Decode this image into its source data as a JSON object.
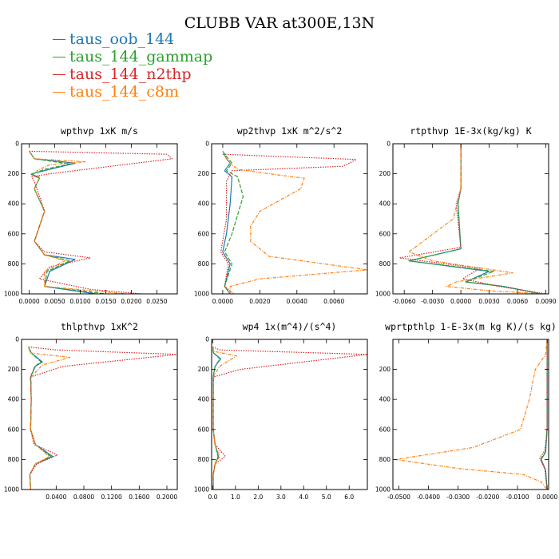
{
  "figure": {
    "title": "CLUBB VAR at300E,13N"
  },
  "legend": [
    {
      "label": "taus_oob_144",
      "color": "#1f77b4",
      "dash": "solid"
    },
    {
      "label": "taus_144_gammap",
      "color": "#2ca02c",
      "dash": "longdash"
    },
    {
      "label": "taus_144_n2thp",
      "color": "#d62728",
      "dash": "dot"
    },
    {
      "label": "taus_144_c8m",
      "color": "#ff7f0e",
      "dash": "dashdot"
    }
  ],
  "chart_data": [
    {
      "type": "line",
      "title": "wpthvp  1xK m/s",
      "xlim": [
        -0.0015,
        0.029
      ],
      "ylim": [
        1000,
        0
      ],
      "xticks": [
        0,
        0.005,
        0.01,
        0.015,
        0.02,
        0.025
      ],
      "xtick_labels": [
        "0.0000",
        "0.0050",
        "0.0100",
        "0.0150",
        "0.0200",
        "0.0250"
      ],
      "yticks": [
        0,
        200,
        400,
        600,
        800,
        1000
      ],
      "ytick_labels": [
        "0",
        "200",
        "400",
        "600",
        "800",
        "1000"
      ],
      "series": [
        {
          "name": "taus_oob_144",
          "x": [
            0,
            0.001,
            0.009,
            0.004,
            0.0005,
            0.002,
            0.001,
            0.003,
            0.001,
            0.003,
            0.009,
            0.004,
            0.003,
            0.013
          ],
          "y": [
            50,
            100,
            130,
            170,
            200,
            230,
            300,
            450,
            650,
            740,
            770,
            850,
            950,
            1000
          ]
        },
        {
          "name": "taus_144_gammap",
          "x": [
            0,
            0.001,
            0.008,
            0.003,
            0.0004,
            0.002,
            0.001,
            0.003,
            0.001,
            0.003,
            0.008,
            0.0035,
            0.003,
            0.015
          ],
          "y": [
            50,
            100,
            135,
            170,
            205,
            230,
            300,
            450,
            650,
            740,
            780,
            850,
            950,
            1000
          ]
        },
        {
          "name": "taus_144_n2thp",
          "x": [
            0,
            0.027,
            0.028,
            0.004,
            0.0005,
            0.001,
            0.003,
            0.001,
            0.003,
            0.012,
            0.004,
            0.002,
            0.012,
            0.022
          ],
          "y": [
            50,
            70,
            100,
            200,
            220,
            250,
            450,
            650,
            720,
            760,
            820,
            900,
            970,
            1000
          ]
        },
        {
          "name": "taus_144_c8m",
          "x": [
            0,
            0.001,
            0.011,
            0.004,
            0.0015,
            0.002,
            0.001,
            0.003,
            0.001,
            0.003,
            0.007,
            0.003,
            0.003,
            0.019
          ],
          "y": [
            50,
            100,
            120,
            140,
            180,
            230,
            300,
            450,
            650,
            740,
            780,
            850,
            950,
            1000
          ]
        }
      ]
    },
    {
      "type": "line",
      "title": "wp2thvp  1xK m^2/s^2",
      "xlim": [
        -0.0006,
        0.0078
      ],
      "ylim": [
        1000,
        0
      ],
      "xticks": [
        0,
        0.002,
        0.004,
        0.006
      ],
      "xtick_labels": [
        "0.0000",
        "0.0020",
        "0.0040",
        "0.0060"
      ],
      "yticks": [
        0,
        200,
        400,
        600,
        800,
        1000
      ],
      "ytick_labels": [
        "0",
        "200",
        "400",
        "600",
        "800",
        "1000"
      ],
      "series": [
        {
          "name": "taus_oob_144",
          "x": [
            0,
            0.0002,
            0.0004,
            0.0001,
            0.0005,
            0.0004,
            0.0002,
            0,
            0.0004,
            0.0001,
            0.0004
          ],
          "y": [
            50,
            100,
            130,
            180,
            220,
            400,
            600,
            720,
            800,
            950,
            1000
          ]
        },
        {
          "name": "taus_144_gammap",
          "x": [
            0,
            0.0003,
            0.0005,
            0.0002,
            0.0008,
            0.0011,
            0.0005,
            0.0001,
            0.0005,
            0.0001,
            0.0004
          ],
          "y": [
            50,
            100,
            130,
            180,
            220,
            350,
            600,
            720,
            800,
            950,
            1000
          ]
        },
        {
          "name": "taus_144_n2thp",
          "x": [
            0,
            0.0072,
            0.0065,
            0.0005,
            0.0002,
            0.0002,
            -0.0001,
            0.0003,
            0.0001,
            0.0006
          ],
          "y": [
            70,
            105,
            150,
            180,
            250,
            500,
            720,
            800,
            950,
            1000
          ]
        },
        {
          "name": "taus_144_c8m",
          "x": [
            0,
            0.0002,
            0.0004,
            0.0008,
            0.0025,
            0.0044,
            0.0042,
            0.002,
            0.0015,
            0.0015,
            0.0025,
            0.0078,
            0.002,
            0.0004,
            0.0004
          ],
          "y": [
            50,
            100,
            130,
            170,
            200,
            230,
            300,
            450,
            550,
            650,
            750,
            840,
            900,
            950,
            1000
          ]
        }
      ]
    },
    {
      "type": "line",
      "title": "rtpthvp  1E-3x(kg/kg) K",
      "xlim": [
        -0.0072,
        0.0093
      ],
      "ylim": [
        1000,
        0
      ],
      "xticks": [
        -0.006,
        -0.003,
        0,
        0.003,
        0.006,
        0.009
      ],
      "xtick_labels": [
        "-0.0060",
        "-0.0030",
        "0.0000",
        "0.0030",
        "0.0060",
        "0.0090"
      ],
      "yticks": [
        0,
        200,
        400,
        600,
        800,
        1000
      ],
      "ytick_labels": [
        "0",
        "200",
        "400",
        "600",
        "800",
        "1000"
      ],
      "series": [
        {
          "name": "taus_oob_144",
          "x": [
            0,
            0,
            -0.0003,
            0,
            -0.0055,
            0.003,
            0.0005,
            0.0045,
            0.0085
          ],
          "y": [
            0,
            300,
            400,
            700,
            780,
            850,
            920,
            950,
            1000
          ]
        },
        {
          "name": "taus_144_gammap",
          "x": [
            0,
            0,
            -0.0003,
            0,
            -0.0055,
            0.0035,
            0.0005,
            0.0045,
            0.0085
          ],
          "y": [
            0,
            300,
            400,
            700,
            780,
            850,
            920,
            950,
            1000
          ]
        },
        {
          "name": "taus_144_n2thp",
          "x": [
            0,
            0,
            -0.0005,
            0,
            -0.0065,
            0.002,
            0.0002,
            0.004,
            0.009
          ],
          "y": [
            0,
            300,
            400,
            690,
            760,
            830,
            900,
            950,
            1000
          ]
        },
        {
          "name": "taus_144_c8m",
          "x": [
            0,
            0,
            -0.0008,
            -0.0055,
            -0.003,
            0.0055,
            -0.0005,
            -0.0015,
            0.003,
            0.009
          ],
          "y": [
            0,
            300,
            500,
            720,
            780,
            860,
            920,
            950,
            980,
            1000
          ]
        }
      ]
    },
    {
      "type": "line",
      "title": "thlpthvp  1xK^2",
      "xlim": [
        -0.01,
        0.215
      ],
      "ylim": [
        1000,
        0
      ],
      "xticks": [
        0.04,
        0.08,
        0.12,
        0.16,
        0.2
      ],
      "xtick_labels": [
        "0.0400",
        "0.0800",
        "0.1200",
        "0.1600",
        "0.2000"
      ],
      "yticks": [
        0,
        200,
        400,
        600,
        800,
        1000
      ],
      "ytick_labels": [
        "0",
        "200",
        "400",
        "600",
        "800",
        "1000"
      ],
      "series": [
        {
          "name": "taus_oob_144",
          "x": [
            0,
            0.004,
            0.02,
            0.01,
            0.003,
            0.004,
            0.003,
            0.01,
            0.035,
            0.01,
            0.002,
            0.003
          ],
          "y": [
            50,
            90,
            150,
            180,
            250,
            400,
            600,
            700,
            780,
            830,
            900,
            1000
          ]
        },
        {
          "name": "taus_144_gammap",
          "x": [
            0,
            0.004,
            0.018,
            0.009,
            0.003,
            0.004,
            0.003,
            0.01,
            0.032,
            0.01,
            0.002,
            0.003
          ],
          "y": [
            50,
            90,
            150,
            180,
            250,
            400,
            600,
            700,
            780,
            830,
            900,
            1000
          ]
        },
        {
          "name": "taus_144_n2thp",
          "x": [
            0,
            0.04,
            0.215,
            0.05,
            0.003,
            0.004,
            0.003,
            0.008,
            0.042,
            0.012,
            0.002,
            0.003
          ],
          "y": [
            50,
            70,
            100,
            180,
            250,
            400,
            600,
            700,
            770,
            830,
            900,
            1000
          ]
        },
        {
          "name": "taus_144_c8m",
          "x": [
            0,
            0.002,
            0.06,
            0.02,
            0.004,
            0.004,
            0.003,
            0.01,
            0.03,
            0.01,
            0.002,
            0.003
          ],
          "y": [
            50,
            90,
            120,
            170,
            250,
            400,
            600,
            700,
            780,
            830,
            900,
            1000
          ]
        }
      ]
    },
    {
      "type": "line",
      "title": "wp4  1x(m^4)/(s^4)",
      "xlim": [
        -0.05,
        6.8
      ],
      "ylim": [
        1000,
        0
      ],
      "xticks": [
        0,
        1,
        2,
        3,
        4,
        5,
        6
      ],
      "xtick_labels": [
        "0.0",
        "1.0",
        "2.0",
        "3.0",
        "4.0",
        "5.0",
        "6.0"
      ],
      "yticks": [
        0,
        200,
        400,
        600,
        800,
        1000
      ],
      "ytick_labels": [
        "0",
        "200",
        "400",
        "600",
        "800",
        "1000"
      ],
      "series": [
        {
          "name": "taus_oob_144",
          "x": [
            0,
            0.03,
            0.35,
            0.1,
            0.02,
            0.02,
            0.02,
            0.1,
            0.25,
            0.1,
            0.02,
            0.02
          ],
          "y": [
            50,
            90,
            130,
            180,
            250,
            400,
            600,
            700,
            780,
            830,
            900,
            1000
          ]
        },
        {
          "name": "taus_144_gammap",
          "x": [
            0,
            0.03,
            0.32,
            0.1,
            0.02,
            0.02,
            0.02,
            0.1,
            0.23,
            0.1,
            0.02,
            0.02
          ],
          "y": [
            50,
            90,
            130,
            180,
            250,
            400,
            600,
            700,
            780,
            830,
            900,
            1000
          ]
        },
        {
          "name": "taus_144_n2thp",
          "x": [
            0,
            0.3,
            6.8,
            1.2,
            0.04,
            0.02,
            0.02,
            0.1,
            0.55,
            0.1,
            0.02,
            0.02
          ],
          "y": [
            50,
            70,
            100,
            200,
            250,
            400,
            600,
            700,
            780,
            830,
            900,
            1000
          ]
        },
        {
          "name": "taus_144_c8m",
          "x": [
            0,
            0.05,
            1.05,
            0.3,
            0.03,
            0.02,
            0.02,
            0.1,
            0.3,
            0.1,
            0.02,
            0.02
          ],
          "y": [
            50,
            80,
            110,
            180,
            250,
            400,
            600,
            700,
            780,
            830,
            900,
            1000
          ]
        }
      ]
    },
    {
      "type": "line",
      "title": "wprtpthlp  1-E-3x(m kg K)/(s kg)",
      "xlim": [
        -0.052,
        0.0005
      ],
      "ylim": [
        1000,
        0
      ],
      "xticks": [
        -0.05,
        -0.04,
        -0.03,
        -0.02,
        -0.01,
        0
      ],
      "xtick_labels": [
        "-0.0500",
        "-0.0400",
        "-0.0300",
        "-0.0200",
        "-0.0100",
        "0.0000"
      ],
      "yticks": [
        200,
        400,
        600,
        800,
        1000
      ],
      "ytick_labels": [
        "200",
        "400",
        "600",
        "800",
        "1000"
      ],
      "series": [
        {
          "name": "taus_oob_144",
          "x": [
            0,
            0,
            0,
            -0.0005,
            -0.002,
            -0.0005,
            0
          ],
          "y": [
            0,
            300,
            600,
            750,
            800,
            870,
            1000
          ]
        },
        {
          "name": "taus_144_gammap",
          "x": [
            0,
            0,
            0,
            -0.0006,
            -0.0022,
            -0.0006,
            0
          ],
          "y": [
            0,
            300,
            600,
            750,
            800,
            870,
            1000
          ]
        },
        {
          "name": "taus_144_n2thp",
          "x": [
            0,
            0,
            0,
            -0.0008,
            -0.0025,
            -0.0008,
            0
          ],
          "y": [
            0,
            300,
            600,
            740,
            790,
            860,
            1000
          ]
        },
        {
          "name": "taus_144_c8m",
          "x": [
            0,
            -0.0005,
            -0.004,
            -0.006,
            -0.009,
            -0.025,
            -0.051,
            -0.03,
            -0.008,
            -0.002,
            0
          ],
          "y": [
            0,
            100,
            200,
            400,
            600,
            720,
            800,
            860,
            900,
            950,
            1000
          ]
        }
      ]
    }
  ]
}
